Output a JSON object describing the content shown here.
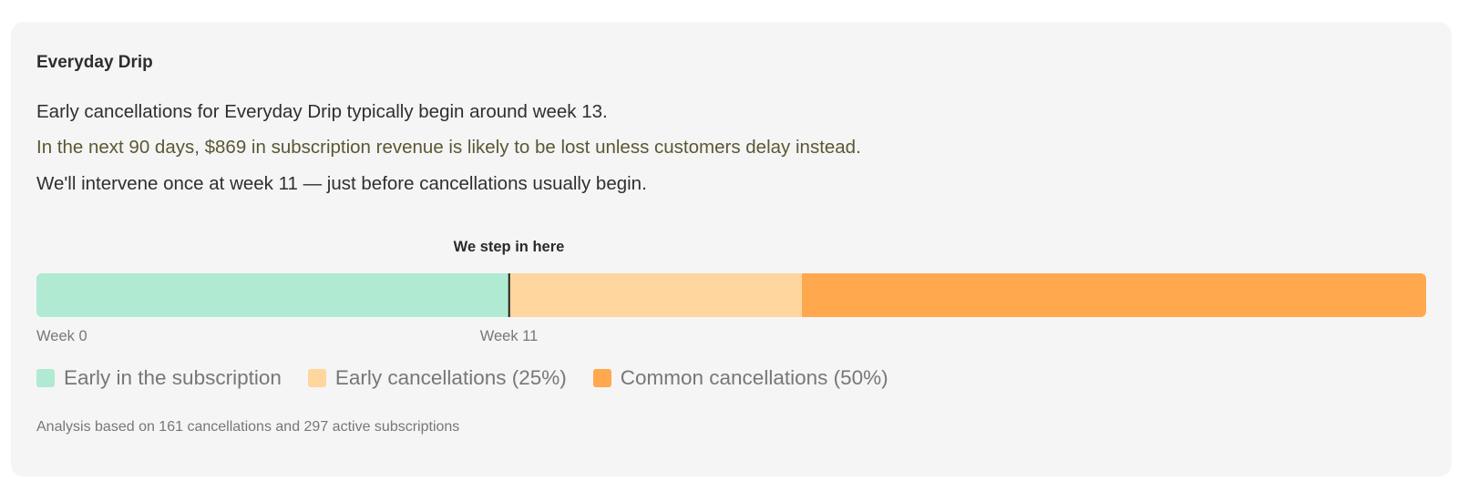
{
  "card": {
    "title": "Everyday Drip",
    "lines": [
      "Early cancellations for Everyday Drip typically begin around week 13.",
      "In the next 90 days, $869 in subscription revenue is likely to be lost unless customers delay instead.",
      "We'll intervene once at week 11 — just before cancellations usually begin."
    ],
    "footer": "Analysis based on 161 cancellations and 297 active subscriptions"
  },
  "colors": {
    "card_bg": "#f5f5f5",
    "highlight_text": "#5a5833",
    "early_subscription": "#b0ead3",
    "early_cancellations": "#fed69e",
    "common_cancellations": "#ffa84e",
    "marker": "#222222"
  },
  "chart_data": {
    "type": "bar",
    "orientation": "horizontal-stacked-timeline",
    "title": "",
    "annotation": "We step in here",
    "marker_week": 11,
    "segments": [
      {
        "name": "Early in the subscription",
        "start_pct": 0,
        "end_pct": 34.0,
        "color": "#b0ead3"
      },
      {
        "name": "Early cancellations (25%)",
        "start_pct": 34.0,
        "end_pct": 55.1,
        "color": "#fed69e"
      },
      {
        "name": "Common cancellations (50%)",
        "start_pct": 55.1,
        "end_pct": 100,
        "color": "#ffa84e"
      }
    ],
    "tick_labels": [
      {
        "label": "Week 0",
        "pos_pct": 0
      },
      {
        "label": "Week 11",
        "pos_pct": 34.0
      }
    ],
    "legend": [
      "Early in the subscription",
      "Early cancellations (25%)",
      "Common cancellations (50%)"
    ],
    "legend_position": "bottom",
    "grid": false
  },
  "timeline": {
    "step_label": "We step in here",
    "week_start_label": "Week 0",
    "week_marker_label": "Week 11"
  },
  "legend": {
    "items": [
      {
        "label": "Early in the subscription",
        "color": "#b0ead3"
      },
      {
        "label": "Early cancellations (25%)",
        "color": "#fed69e"
      },
      {
        "label": "Common cancellations (50%)",
        "color": "#ffa84e"
      }
    ]
  }
}
